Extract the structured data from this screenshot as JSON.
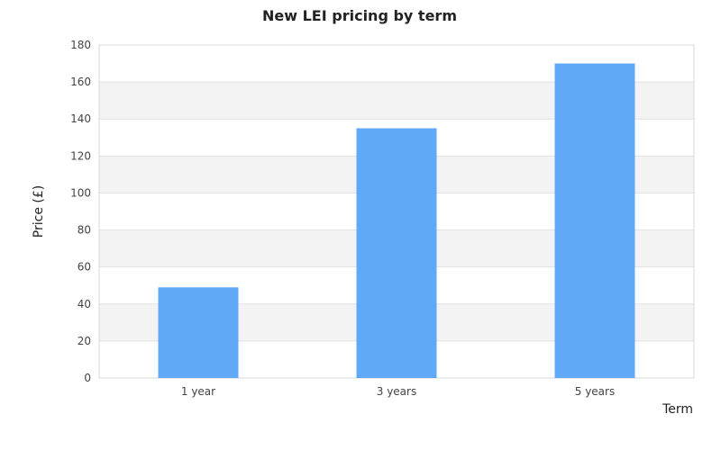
{
  "chart_data": {
    "type": "bar",
    "title": "New LEI pricing by term",
    "xlabel": "Term",
    "ylabel": "Price (£)",
    "categories": [
      "1 year",
      "3 years",
      "5 years"
    ],
    "values": [
      49,
      135,
      170
    ],
    "ylim": [
      0,
      180
    ],
    "yticks": [
      "0",
      "20",
      "40",
      "60",
      "80",
      "100",
      "120",
      "140",
      "160",
      "180"
    ],
    "grid": true,
    "colors": {
      "bar": "#60a8f6",
      "band": "#f3f3f3",
      "gridline": "#e2e2e2",
      "axis": "#d8d8d8",
      "text": "#222222",
      "tick_text": "#444444"
    }
  }
}
